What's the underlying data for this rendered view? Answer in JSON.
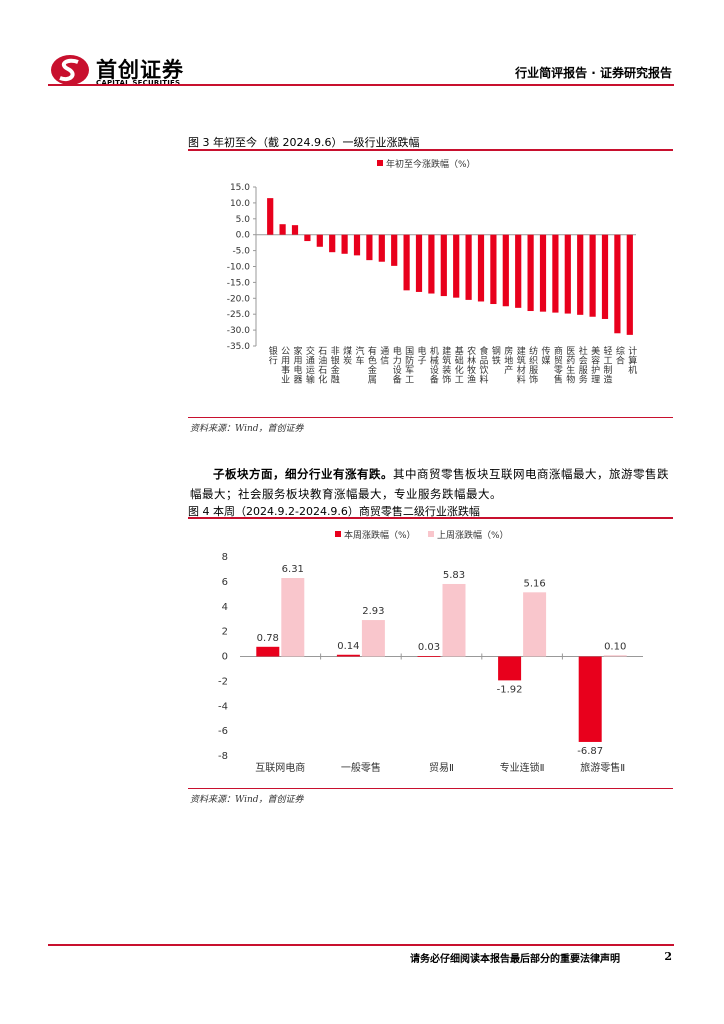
{
  "header": {
    "logo_cn": "首创证券",
    "logo_en": "CAPITAL SECURITIES",
    "report_type": "行业简评报告 · 证券研究报告"
  },
  "figure3": {
    "title": "图 3 年初至今（截 2024.9.6）一级行业涨跌幅",
    "source": "资料来源：Wind，首创证券"
  },
  "paragraph": {
    "lead": "子板块方面，细分行业有涨有跌。",
    "body": "其中商贸零售板块互联网电商涨幅最大，旅游零售跌幅最大；社会服务板块教育涨幅最大，专业服务跌幅最大。"
  },
  "figure4": {
    "title": "图 4 本周（2024.9.2-2024.9.6）商贸零售二级行业涨跌幅",
    "source": "资料来源：Wind，首创证券"
  },
  "footer": {
    "disclaimer": "请务必仔细阅读本报告最后部分的重要法律声明",
    "page": "2"
  },
  "colors": {
    "accent": "#c8102e",
    "bar_red": "#e8001c",
    "bar_pink": "#f9c6cc"
  },
  "chart_data": [
    {
      "type": "bar",
      "legend": [
        "年初至今涨跌幅（%）"
      ],
      "ylim": [
        -35,
        15
      ],
      "yticks": [
        15.0,
        10.0,
        5.0,
        0.0,
        -5.0,
        -10.0,
        -15.0,
        -20.0,
        -25.0,
        -30.0,
        -35.0
      ],
      "categories": [
        "银行",
        "公用事业",
        "家用电器",
        "交通运输",
        "石油石化",
        "非银金融",
        "煤炭",
        "汽车",
        "有色金属",
        "通信",
        "电力设备",
        "国防军工",
        "电子",
        "机械设备",
        "建筑装饰",
        "基础化工",
        "农林牧渔",
        "食品饮料",
        "钢铁",
        "房地产",
        "建筑材料",
        "纺织服饰",
        "传媒",
        "商贸零售",
        "医药生物",
        "社会服务",
        "美容护理",
        "轻工制造",
        "综合",
        "计算机"
      ],
      "series": [
        {
          "name": "年初至今涨跌幅（%）",
          "values": [
            11.5,
            3.3,
            3.0,
            -2.0,
            -3.8,
            -5.5,
            -6.0,
            -6.5,
            -8.0,
            -8.5,
            -9.8,
            -17.5,
            -18.0,
            -18.5,
            -19.3,
            -19.8,
            -20.5,
            -21.0,
            -21.8,
            -22.5,
            -23.0,
            -24.0,
            -24.2,
            -24.5,
            -24.8,
            -25.2,
            -25.8,
            -26.5,
            -31.0,
            -31.5
          ]
        }
      ]
    },
    {
      "type": "bar",
      "legend": [
        "本周涨跌幅（%）",
        "上周涨跌幅（%）"
      ],
      "ylim": [
        -8,
        8
      ],
      "yticks": [
        8,
        6,
        4,
        2,
        0,
        -2,
        -4,
        -6,
        -8
      ],
      "categories": [
        "互联网电商",
        "一般零售",
        "贸易Ⅱ",
        "专业连锁Ⅱ",
        "旅游零售Ⅱ"
      ],
      "series": [
        {
          "name": "本周涨跌幅（%）",
          "values": [
            0.78,
            0.14,
            0.03,
            -1.92,
            -6.87
          ],
          "labels": [
            "0.78",
            "0.14",
            "0.03",
            "-1.92",
            "-6.87"
          ]
        },
        {
          "name": "上周涨跌幅（%）",
          "values": [
            6.31,
            2.93,
            5.83,
            5.16,
            0.1
          ],
          "labels": [
            "6.31",
            "2.93",
            "5.83",
            "5.16",
            "0.10"
          ]
        }
      ]
    }
  ]
}
